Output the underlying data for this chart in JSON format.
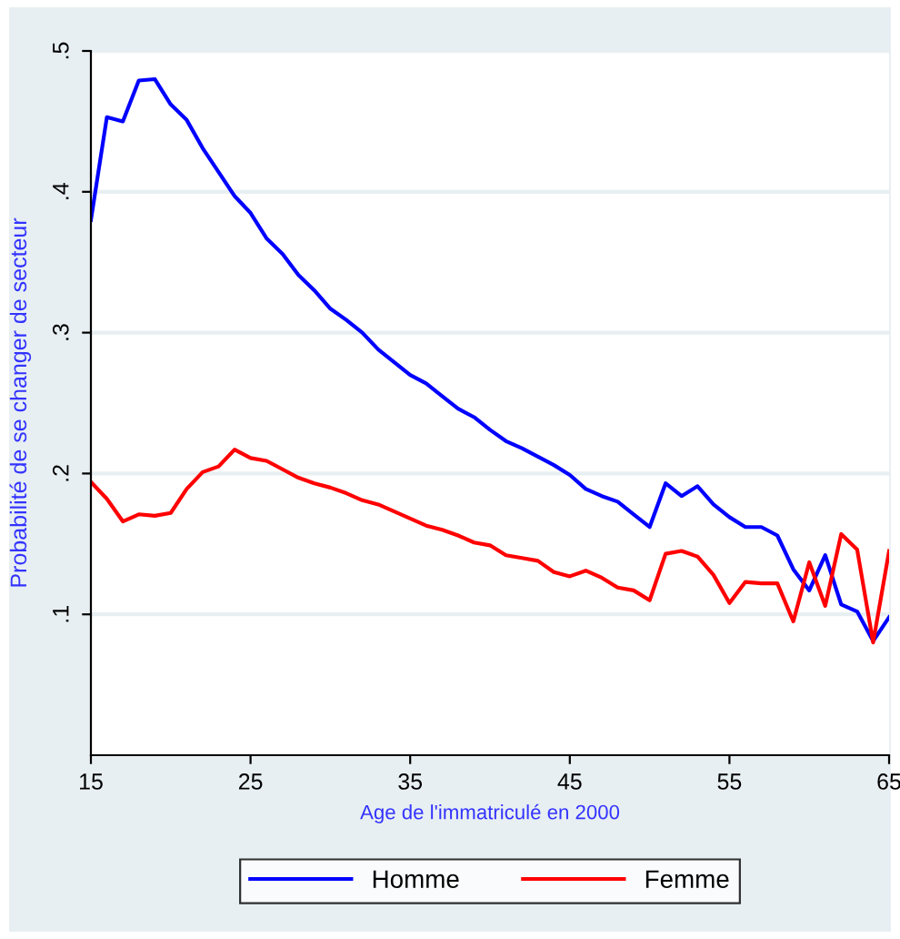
{
  "chart_data": {
    "type": "line",
    "xlabel": "Age de l'immatriculé en 2000",
    "ylabel": "Probabilité de se changer de secteur",
    "x": [
      15,
      16,
      17,
      18,
      19,
      20,
      21,
      22,
      23,
      24,
      25,
      26,
      27,
      28,
      29,
      30,
      31,
      32,
      33,
      34,
      35,
      36,
      37,
      38,
      39,
      40,
      41,
      42,
      43,
      44,
      45,
      46,
      47,
      48,
      49,
      50,
      51,
      52,
      53,
      54,
      55,
      56,
      57,
      58,
      59,
      60,
      61,
      62,
      63,
      64,
      65
    ],
    "series": [
      {
        "name": "Homme",
        "color": "#0000ff",
        "values": [
          0.38,
          0.453,
          0.45,
          0.479,
          0.48,
          0.462,
          0.451,
          0.431,
          0.414,
          0.397,
          0.385,
          0.367,
          0.356,
          0.341,
          0.33,
          0.317,
          0.309,
          0.3,
          0.288,
          0.279,
          0.27,
          0.264,
          0.255,
          0.246,
          0.24,
          0.231,
          0.223,
          0.218,
          0.212,
          0.206,
          0.199,
          0.189,
          0.184,
          0.18,
          0.171,
          0.162,
          0.193,
          0.184,
          0.191,
          0.178,
          0.169,
          0.162,
          0.162,
          0.156,
          0.132,
          0.117,
          0.142,
          0.107,
          0.102,
          0.081,
          0.098
        ]
      },
      {
        "name": "Femme",
        "color": "#ff0000",
        "values": [
          0.194,
          0.182,
          0.166,
          0.171,
          0.17,
          0.172,
          0.189,
          0.201,
          0.205,
          0.217,
          0.211,
          0.209,
          0.203,
          0.197,
          0.193,
          0.19,
          0.186,
          0.181,
          0.178,
          0.173,
          0.168,
          0.163,
          0.16,
          0.156,
          0.151,
          0.149,
          0.142,
          0.14,
          0.138,
          0.13,
          0.127,
          0.131,
          0.126,
          0.119,
          0.117,
          0.11,
          0.143,
          0.145,
          0.141,
          0.128,
          0.108,
          0.123,
          0.122,
          0.122,
          0.095,
          0.137,
          0.106,
          0.157,
          0.146,
          0.08,
          0.145
        ]
      }
    ],
    "xlim": [
      15,
      65
    ],
    "xticks": [
      15,
      25,
      35,
      45,
      55,
      65
    ],
    "ylim": [
      0,
      0.5
    ],
    "yticks": [
      {
        "value": 0.1,
        "label": ".1"
      },
      {
        "value": 0.2,
        "label": ".2"
      },
      {
        "value": 0.3,
        "label": ".3"
      },
      {
        "value": 0.4,
        "label": ".4"
      },
      {
        "value": 0.5,
        "label": ".5"
      }
    ],
    "grid": "y",
    "legend": "bottom",
    "line_style": "solid",
    "marker": "none"
  }
}
